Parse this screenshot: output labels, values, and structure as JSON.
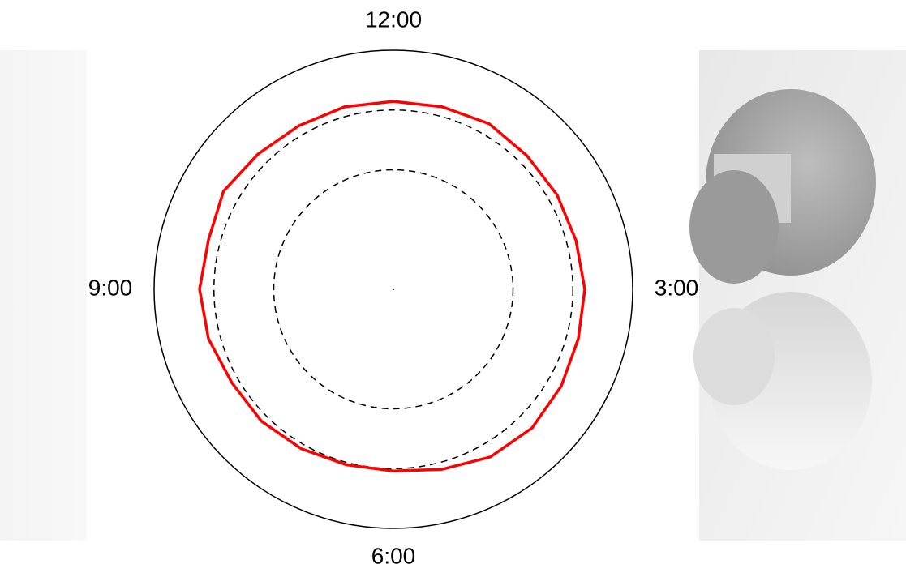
{
  "chart_data": {
    "type": "polar",
    "theta": [
      0,
      15,
      30,
      45,
      60,
      75,
      90,
      105,
      120,
      135,
      150,
      165,
      180,
      195,
      210,
      225,
      240,
      255,
      270,
      285,
      300,
      315,
      330,
      345
    ],
    "values": [
      0.786,
      0.79,
      0.8,
      0.79,
      0.79,
      0.79,
      0.8,
      0.8,
      0.81,
      0.82,
      0.81,
      0.78,
      0.76,
      0.76,
      0.77,
      0.78,
      0.78,
      0.8,
      0.81,
      0.8,
      0.82,
      0.8,
      0.79,
      0.79
    ],
    "color": "#ff0000",
    "rlim": [
      0,
      1
    ],
    "reference_circles": [
      0.75,
      0.5
    ],
    "thetaticks": [
      {
        "value": 0,
        "label": "12:00"
      },
      {
        "value": 90,
        "label": "3:00"
      },
      {
        "value": 180,
        "label": "6:00"
      },
      {
        "value": 270,
        "label": "9:00"
      }
    ]
  }
}
